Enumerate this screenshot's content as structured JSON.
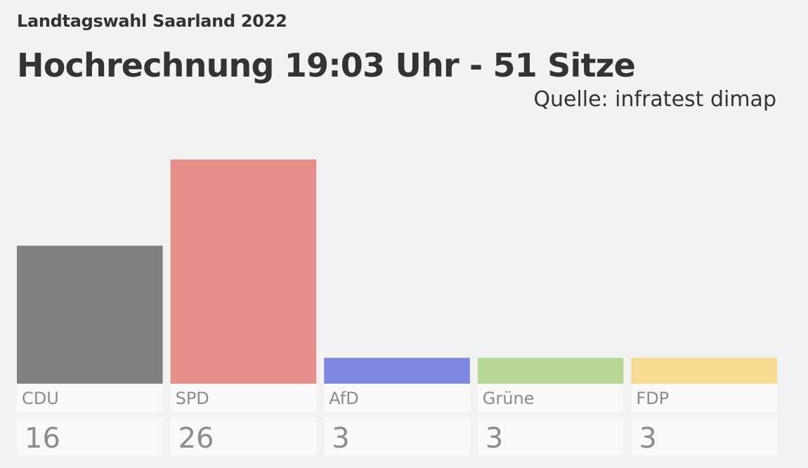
{
  "header": {
    "supertitle": "Landtagswahl Saarland 2022",
    "title": "Hochrechnung 19:03 Uhr - 51 Sitze",
    "source": "Quelle: infratest dimap"
  },
  "chart_data": {
    "type": "bar",
    "categories": [
      "CDU",
      "SPD",
      "AfD",
      "Grüne",
      "FDP"
    ],
    "values": [
      16,
      26,
      3,
      3,
      3
    ],
    "value_labels": [
      "16",
      "26",
      "3",
      "3",
      "3"
    ],
    "colors": [
      "#808080",
      "#e68e8a",
      "#7f88e0",
      "#b6d894",
      "#f6dc90"
    ],
    "title": "Hochrechnung 19:03 Uhr - 51 Sitze",
    "subtitle": "Landtagswahl Saarland 2022",
    "source": "Quelle: infratest dimap",
    "xlabel": "",
    "ylabel": "",
    "grid": false,
    "legend": "none"
  }
}
